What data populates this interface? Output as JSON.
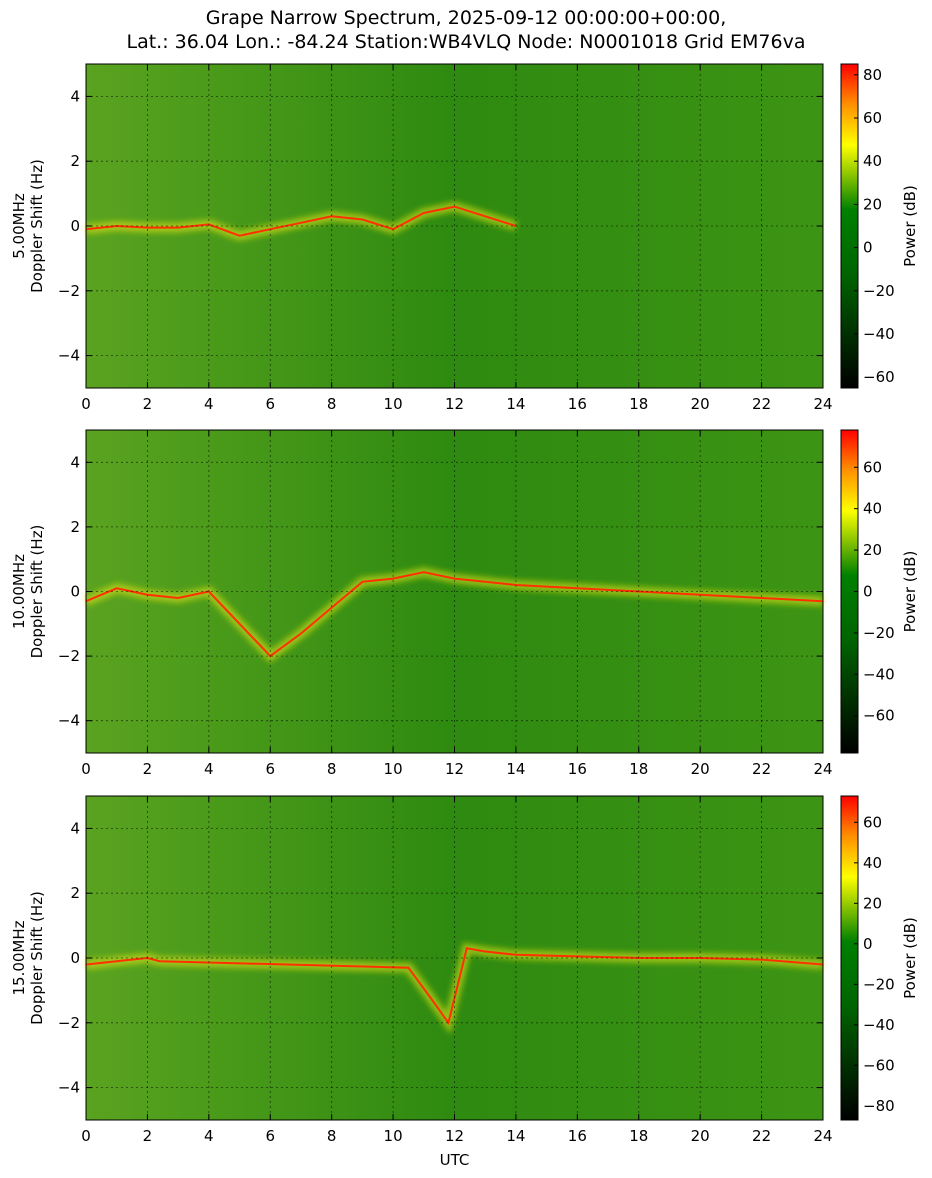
{
  "title_lines": [
    "Grape Narrow Spectrum, 2025-09-12 00:00:00+00:00,",
    "Lat.: 36.04 Lon.: -84.24 Station:WB4VLQ Node: N0001018 Grid EM76va"
  ],
  "colormap": {
    "stops": [
      {
        "pos": 0.0,
        "color": "#000000"
      },
      {
        "pos": 0.35,
        "color": "#006400"
      },
      {
        "pos": 0.55,
        "color": "#008000"
      },
      {
        "pos": 0.75,
        "color": "#ffff00"
      },
      {
        "pos": 0.88,
        "color": "#ff8c00"
      },
      {
        "pos": 1.0,
        "color": "#ff0000"
      }
    ],
    "grid_color": "#000000"
  },
  "chart_data": [
    {
      "type": "heatmap",
      "ylabel_lines": [
        "5.00MHz",
        "Doppler Shift (Hz)"
      ],
      "xlabel": "",
      "xlim": [
        0,
        24
      ],
      "ylim": [
        -5,
        5
      ],
      "xticks": [
        0,
        2,
        4,
        6,
        8,
        10,
        12,
        14,
        16,
        18,
        20,
        22,
        24
      ],
      "yticks": [
        -4,
        -2,
        0,
        2,
        4
      ],
      "grid": true,
      "colorbar": {
        "label": "Power (dB)",
        "range": [
          -65,
          85
        ],
        "ticks": [
          -60,
          -40,
          -20,
          0,
          20,
          40,
          60,
          80
        ]
      },
      "ridge": {
        "x": [
          0,
          1,
          2,
          3,
          4,
          5,
          6,
          7,
          8,
          9,
          10,
          11,
          12,
          13,
          14
        ],
        "y": [
          -0.1,
          0.0,
          -0.05,
          -0.05,
          0.05,
          -0.3,
          -0.1,
          0.1,
          0.3,
          0.2,
          -0.1,
          0.4,
          0.6,
          0.3,
          0.0
        ]
      },
      "ridge_end": 12.3
    },
    {
      "type": "heatmap",
      "ylabel_lines": [
        "10.00MHz",
        "Doppler Shift (Hz)"
      ],
      "xlabel": "",
      "xlim": [
        0,
        24
      ],
      "ylim": [
        -5,
        5
      ],
      "xticks": [
        0,
        2,
        4,
        6,
        8,
        10,
        12,
        14,
        16,
        18,
        20,
        22,
        24
      ],
      "yticks": [
        -4,
        -2,
        0,
        2,
        4
      ],
      "grid": true,
      "colorbar": {
        "label": "Power (dB)",
        "range": [
          -78,
          78
        ],
        "ticks": [
          -60,
          -40,
          -20,
          0,
          20,
          40,
          60
        ]
      },
      "ridge": {
        "x": [
          0,
          1,
          2,
          3,
          4,
          5,
          6,
          7,
          8,
          9,
          10,
          11,
          12,
          13,
          14,
          16,
          18,
          20,
          22,
          24
        ],
        "y": [
          -0.3,
          0.1,
          -0.1,
          -0.2,
          0.0,
          -1.0,
          -2.0,
          -1.3,
          -0.5,
          0.3,
          0.4,
          0.6,
          0.4,
          0.3,
          0.2,
          0.1,
          0.0,
          -0.1,
          -0.2,
          -0.3
        ]
      },
      "ridge_end": 24
    },
    {
      "type": "heatmap",
      "ylabel_lines": [
        "15.00MHz",
        "Doppler Shift (Hz)"
      ],
      "xlabel": "UTC",
      "xlim": [
        0,
        24
      ],
      "ylim": [
        -5,
        5
      ],
      "xticks": [
        0,
        2,
        4,
        6,
        8,
        10,
        12,
        14,
        16,
        18,
        20,
        22,
        24
      ],
      "yticks": [
        -4,
        -2,
        0,
        2,
        4
      ],
      "grid": true,
      "colorbar": {
        "label": "Power (dB)",
        "range": [
          -87,
          73
        ],
        "ticks": [
          -80,
          -60,
          -40,
          -20,
          0,
          20,
          40,
          60
        ]
      },
      "ridge": {
        "x": [
          0,
          1,
          2,
          2.4,
          10.5,
          11.2,
          11.8,
          12.4,
          13,
          14,
          16,
          18,
          20,
          22,
          24
        ],
        "y": [
          -0.2,
          -0.1,
          0.0,
          -0.1,
          -0.3,
          -1.2,
          -2.0,
          0.3,
          0.2,
          0.1,
          0.05,
          0.0,
          0.0,
          -0.05,
          -0.2
        ]
      },
      "ridge_end": 24
    }
  ]
}
